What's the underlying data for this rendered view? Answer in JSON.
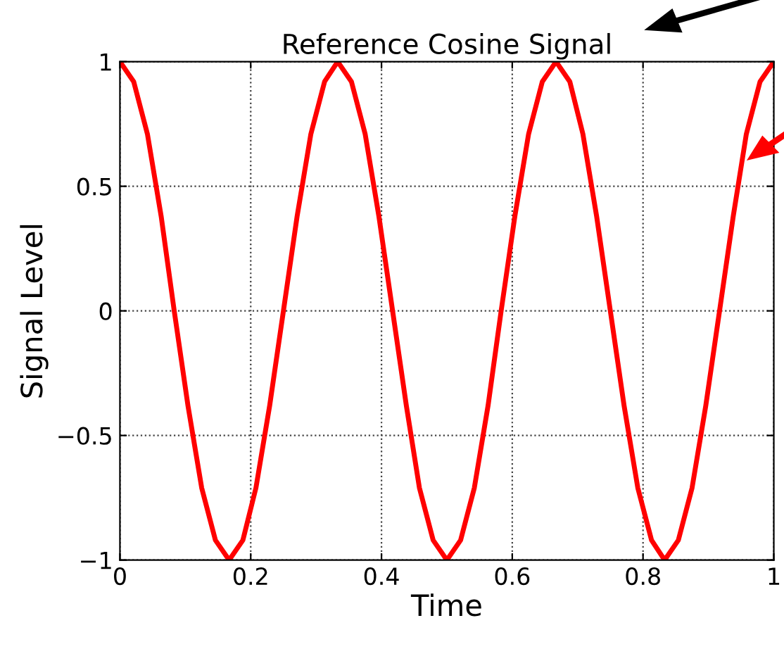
{
  "chart_data": {
    "type": "line",
    "title": "Reference Cosine Signal",
    "xlabel": "Time",
    "ylabel": "Signal Level",
    "x": [
      0,
      0.021,
      0.042,
      0.063,
      0.083,
      0.104,
      0.125,
      0.146,
      0.167,
      0.188,
      0.208,
      0.229,
      0.25,
      0.271,
      0.292,
      0.313,
      0.333,
      0.354,
      0.375,
      0.396,
      0.417,
      0.438,
      0.458,
      0.479,
      0.5,
      0.521,
      0.542,
      0.563,
      0.583,
      0.604,
      0.625,
      0.646,
      0.667,
      0.688,
      0.708,
      0.729,
      0.75,
      0.771,
      0.792,
      0.813,
      0.833,
      0.854,
      0.875,
      0.896,
      0.917,
      0.938,
      0.958,
      0.979,
      1.0
    ],
    "series": [
      {
        "color": "#ff0000",
        "values": [
          1,
          0.92,
          0.71,
          0.38,
          0,
          -0.38,
          -0.71,
          -0.92,
          -1,
          -0.92,
          -0.71,
          -0.38,
          0,
          0.38,
          0.71,
          0.92,
          1,
          0.92,
          0.71,
          0.38,
          0,
          -0.38,
          -0.71,
          -0.92,
          -1,
          -0.92,
          -0.71,
          -0.38,
          0,
          0.38,
          0.71,
          0.92,
          1,
          0.92,
          0.71,
          0.38,
          0,
          -0.38,
          -0.71,
          -0.92,
          -1,
          -0.92,
          -0.71,
          -0.38,
          0,
          0.38,
          0.71,
          0.92,
          1
        ]
      }
    ],
    "xlim": [
      0,
      1
    ],
    "ylim": [
      -1,
      1
    ],
    "xticks": [
      0,
      0.2,
      0.4,
      0.6,
      0.8,
      1
    ],
    "yticks": [
      {
        "value": -1,
        "label": "−1"
      },
      {
        "value": -0.5,
        "label": "−0.5"
      },
      0,
      0.5,
      1
    ],
    "grid": true,
    "line_style": "solid",
    "marker": "none",
    "legend": false
  }
}
